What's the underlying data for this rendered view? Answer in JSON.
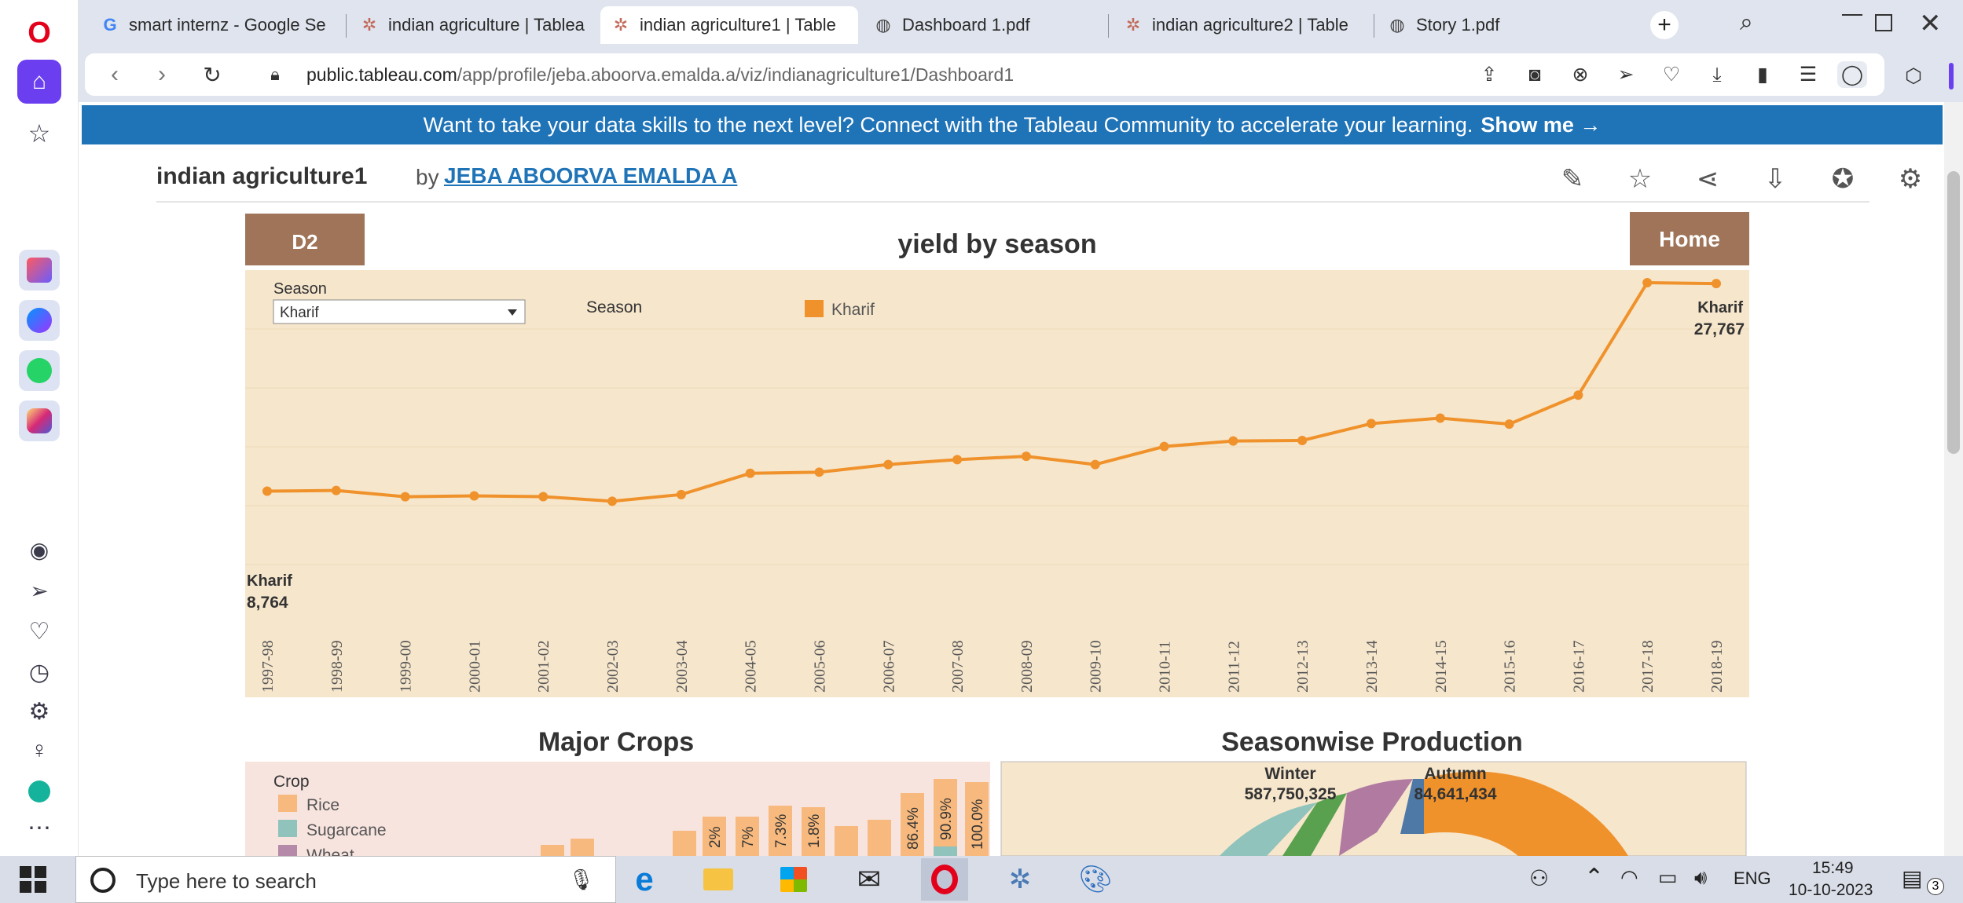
{
  "browser": {
    "tabs": [
      {
        "label": "smart internz - Google Se",
        "icon": "google-icon"
      },
      {
        "label": "indian agriculture | Tablea",
        "icon": "tableau-icon"
      },
      {
        "label": "indian agriculture1 | Table",
        "icon": "tableau-icon",
        "active": true
      },
      {
        "label": "Dashboard 1.pdf",
        "icon": "pdf-globe-icon"
      },
      {
        "label": "indian agriculture2 | Table",
        "icon": "tableau-icon"
      },
      {
        "label": "Story 1.pdf",
        "icon": "pdf-globe-icon"
      }
    ],
    "url_host": "public.tableau.com",
    "url_path": "/app/profile/jeba.aboorva.emalda.a/viz/indianagriculture1/Dashboard1"
  },
  "banner": {
    "text": "Want to take your data skills to the next level? Connect with the Tableau Community to accelerate your learning.",
    "link": "Show me →"
  },
  "viz_header": {
    "title": "indian agriculture1",
    "by": "by",
    "author": "JEBA ABOORVA EMALDA A"
  },
  "dashboard": {
    "d2_button": "D2",
    "home_button": "Home",
    "chart_title": "yield by season",
    "filter_label": "Season",
    "filter_value": "Kharif",
    "legend_title": "Season",
    "legend_item": "Kharif",
    "start_label": "Kharif",
    "start_value": "8,764",
    "end_label": "Kharif",
    "end_value": "27,767",
    "major_crops_title": "Major Crops",
    "seasonwise_title": "Seasonwise Production",
    "crop_legend_title": "Crop",
    "crop_legend": [
      "Rice",
      "Sugarcane",
      "Wheat"
    ],
    "bar_labels": [
      "2%",
      "7%",
      "7.3%",
      "1.8%",
      "86.4%",
      "90.9%",
      "100.0%"
    ],
    "winter_label": "Winter",
    "winter_value": "587,750,325",
    "autumn_label": "Autumn",
    "autumn_value": "84,641,434"
  },
  "chart_data": {
    "type": "line",
    "title": "yield by season",
    "x": [
      "1997-98",
      "1998-99",
      "1999-00",
      "2000-01",
      "2001-02",
      "2002-03",
      "2003-04",
      "2004-05",
      "2005-06",
      "2006-07",
      "2007-08",
      "2008-09",
      "2009-10",
      "2010-11",
      "2011-12",
      "2012-13",
      "2013-14",
      "2014-15",
      "2015-16",
      "2016-17",
      "2017-18",
      "2018-19"
    ],
    "series": [
      {
        "name": "Kharif",
        "values": [
          8764,
          8820,
          8250,
          8330,
          8260,
          7840,
          8450,
          10400,
          10500,
          11200,
          11650,
          11950,
          11200,
          12850,
          13350,
          13400,
          14950,
          15450,
          14900,
          17550,
          27850,
          27767
        ]
      }
    ],
    "color": "#f0922b",
    "plot_background": "#f6e6cc",
    "grid": true
  },
  "colors": {
    "tableau_blue": "#1f73b7",
    "button_brown": "#9f7459",
    "plot_bg": "#f6e6cc",
    "line": "#f0922b"
  },
  "taskbar": {
    "search_placeholder": "Type here to search",
    "lang": "ENG",
    "time": "15:49",
    "date": "10-10-2023",
    "notif_count": "3"
  }
}
